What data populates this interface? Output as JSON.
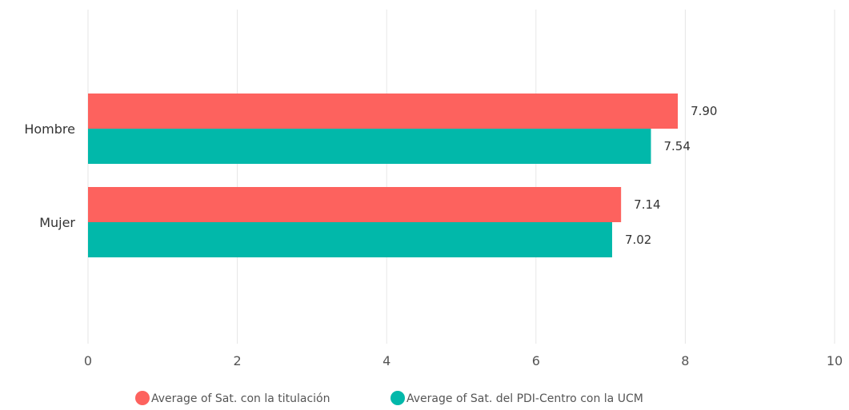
{
  "chart_data": {
    "type": "bar",
    "orientation": "horizontal",
    "categories": [
      "Hombre",
      "Mujer"
    ],
    "series": [
      {
        "name": "Average of Sat. con la titulación",
        "values": [
          7.9,
          7.14
        ],
        "labels": [
          "7.90",
          "7.14"
        ],
        "color": "#FD625E"
      },
      {
        "name": "Average of Sat. del PDI-Centro con la UCM",
        "values": [
          7.54,
          7.02
        ],
        "labels": [
          "7.54",
          "7.02"
        ],
        "color": "#01B8AA"
      }
    ],
    "xlim": [
      0,
      10
    ],
    "xticks": [
      0,
      2,
      4,
      6,
      8,
      10
    ],
    "xtick_labels": [
      "0",
      "2",
      "4",
      "6",
      "8",
      "10"
    ],
    "grid": true,
    "legend_position": "bottom"
  }
}
